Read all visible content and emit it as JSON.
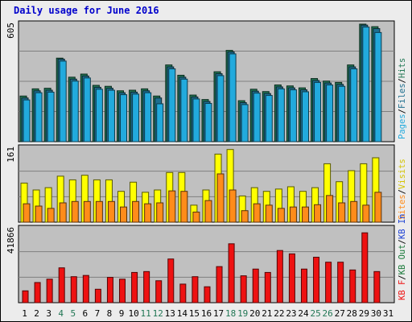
{
  "title": "Daily usage for June 2016",
  "colors": {
    "panel_bg": "#c0c0c0",
    "pages": "#22aadd",
    "files": "#1f6f8f",
    "hits": "#227755",
    "visits": "#ffff00",
    "sites": "#ff8c1a",
    "kb_in": "#1a3fd4",
    "kb_out": "#1a7a3a",
    "kb_f": "#ee1111",
    "weekend_label": "#227755",
    "weekday_label": "#000000"
  },
  "chart_data": [
    {
      "type": "bar",
      "panel": "top",
      "ymax_label": "605",
      "ylim": [
        0,
        605
      ],
      "legend": [
        {
          "text": "Pages",
          "color": "#22aadd"
        },
        {
          "text": "/",
          "color": "#000000"
        },
        {
          "text": "Files",
          "color": "#1f6f8f"
        },
        {
          "text": "/",
          "color": "#000000"
        },
        {
          "text": "Hits",
          "color": "#227755"
        }
      ],
      "categories": [
        "1",
        "2",
        "3",
        "4",
        "5",
        "6",
        "7",
        "8",
        "9",
        "10",
        "11",
        "12",
        "13",
        "14",
        "15",
        "16",
        "17",
        "18",
        "19",
        "20",
        "21",
        "22",
        "23",
        "24",
        "25",
        "26",
        "27",
        "28",
        "29",
        "30",
        "31"
      ],
      "series": [
        {
          "name": "Hits",
          "values": [
            235,
            272,
            275,
            430,
            332,
            348,
            290,
            285,
            262,
            265,
            272,
            235,
            395,
            342,
            240,
            217,
            360,
            470,
            211,
            270,
            258,
            292,
            287,
            277,
            325,
            312,
            305,
            395,
            605,
            592,
            0
          ]
        },
        {
          "name": "Files",
          "values": [
            225,
            262,
            265,
            425,
            322,
            338,
            280,
            275,
            252,
            255,
            262,
            225,
            385,
            332,
            230,
            207,
            350,
            462,
            201,
            260,
            248,
            282,
            277,
            267,
            315,
            302,
            295,
            385,
            600,
            582,
            0
          ]
        },
        {
          "name": "Pages",
          "values": [
            215,
            252,
            255,
            415,
            312,
            328,
            270,
            265,
            242,
            245,
            252,
            195,
            375,
            322,
            220,
            197,
            340,
            452,
            191,
            250,
            238,
            272,
            267,
            257,
            305,
            292,
            285,
            375,
            590,
            562,
            0
          ]
        }
      ]
    },
    {
      "type": "bar",
      "panel": "middle",
      "ymax_label": "161",
      "ylim": [
        0,
        161
      ],
      "legend": [
        {
          "text": "Sites",
          "color": "#ff8c1a"
        },
        {
          "text": "/",
          "color": "#000000"
        },
        {
          "text": "Visits",
          "color": "#ffff00"
        }
      ],
      "categories": [
        "1",
        "2",
        "3",
        "4",
        "5",
        "6",
        "7",
        "8",
        "9",
        "10",
        "11",
        "12",
        "13",
        "14",
        "15",
        "16",
        "17",
        "18",
        "19",
        "20",
        "21",
        "22",
        "23",
        "24",
        "25",
        "26",
        "27",
        "28",
        "29",
        "30",
        "31"
      ],
      "series": [
        {
          "name": "Visits",
          "values": [
            85,
            70,
            75,
            100,
            92,
            102,
            92,
            92,
            67,
            87,
            65,
            70,
            108,
            108,
            37,
            70,
            148,
            158,
            57,
            75,
            67,
            72,
            77,
            67,
            75,
            127,
            88,
            112,
            127,
            140,
            0
          ]
        },
        {
          "name": "Sites",
          "values": [
            40,
            35,
            30,
            42,
            45,
            45,
            45,
            45,
            33,
            45,
            40,
            42,
            68,
            67,
            22,
            47,
            105,
            70,
            25,
            40,
            37,
            30,
            33,
            33,
            38,
            58,
            42,
            45,
            37,
            65,
            0
          ]
        }
      ]
    },
    {
      "type": "bar",
      "panel": "bottom",
      "ymax_label": "41866",
      "ylim": [
        0,
        41866
      ],
      "legend": [
        {
          "text": "KB F",
          "color": "#ee1111"
        },
        {
          "text": "/",
          "color": "#000000"
        },
        {
          "text": "KB Out",
          "color": "#1a7a3a"
        },
        {
          "text": "/",
          "color": "#000000"
        },
        {
          "text": "KB In",
          "color": "#1a3fd4"
        }
      ],
      "categories": [
        "1",
        "2",
        "3",
        "4",
        "5",
        "6",
        "7",
        "8",
        "9",
        "10",
        "11",
        "12",
        "13",
        "14",
        "15",
        "16",
        "17",
        "18",
        "19",
        "20",
        "21",
        "22",
        "23",
        "24",
        "25",
        "26",
        "27",
        "28",
        "29",
        "30",
        "31"
      ],
      "series": [
        {
          "name": "KB F",
          "values": [
            6700,
            11400,
            13300,
            19700,
            14700,
            15400,
            7600,
            14300,
            13300,
            17100,
            17600,
            12400,
            24700,
            10500,
            14700,
            9000,
            20400,
            33300,
            15200,
            19000,
            17100,
            29500,
            27600,
            19000,
            25700,
            22900,
            22900,
            18500,
            39500,
            17600,
            0
          ]
        }
      ]
    }
  ],
  "x_labels": [
    {
      "text": "1",
      "weekend": false
    },
    {
      "text": "2",
      "weekend": false
    },
    {
      "text": "3",
      "weekend": false
    },
    {
      "text": "4",
      "weekend": true
    },
    {
      "text": "5",
      "weekend": true
    },
    {
      "text": "6",
      "weekend": false
    },
    {
      "text": "7",
      "weekend": false
    },
    {
      "text": "8",
      "weekend": false
    },
    {
      "text": "9",
      "weekend": false
    },
    {
      "text": "10",
      "weekend": false
    },
    {
      "text": "11",
      "weekend": true
    },
    {
      "text": "12",
      "weekend": true
    },
    {
      "text": "13",
      "weekend": false
    },
    {
      "text": "14",
      "weekend": false
    },
    {
      "text": "15",
      "weekend": false
    },
    {
      "text": "16",
      "weekend": false
    },
    {
      "text": "17",
      "weekend": false
    },
    {
      "text": "18",
      "weekend": true
    },
    {
      "text": "19",
      "weekend": true
    },
    {
      "text": "20",
      "weekend": false
    },
    {
      "text": "21",
      "weekend": false
    },
    {
      "text": "22",
      "weekend": false
    },
    {
      "text": "23",
      "weekend": false
    },
    {
      "text": "24",
      "weekend": false
    },
    {
      "text": "25",
      "weekend": true
    },
    {
      "text": "26",
      "weekend": true
    },
    {
      "text": "27",
      "weekend": false
    },
    {
      "text": "28",
      "weekend": false
    },
    {
      "text": "29",
      "weekend": false
    },
    {
      "text": "30",
      "weekend": false
    },
    {
      "text": "31",
      "weekend": false
    }
  ]
}
